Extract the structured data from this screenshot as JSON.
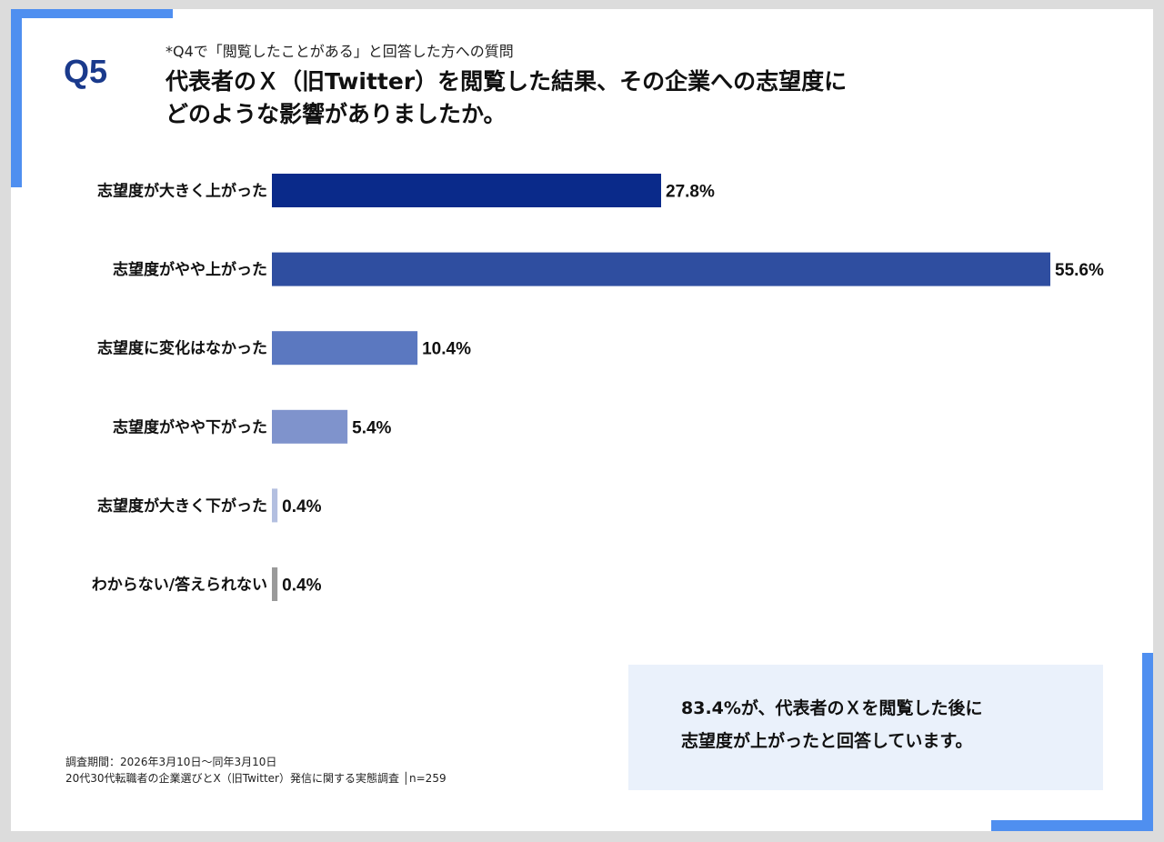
{
  "header": {
    "question_number": "Q5",
    "subnote": "*Q4で「閲覧したことがある」と回答した方への質問",
    "title_line1": "代表者のＸ（旧Twitter）を閲覧した結果、その企業への志望度に",
    "title_line2": "どのような影響がありましたか。"
  },
  "chart_data": {
    "type": "bar",
    "orientation": "horizontal",
    "categories": [
      "志望度が大きく上がった",
      "志望度がやや上がった",
      "志望度に変化はなかった",
      "志望度がやや下がった",
      "志望度が大きく下がった",
      "わからない/答えられない"
    ],
    "values": [
      27.8,
      55.6,
      10.4,
      5.4,
      0.4,
      0.4
    ],
    "value_labels": [
      "27.8%",
      "55.6%",
      "10.4%",
      "5.4%",
      "0.4%",
      "0.4%"
    ],
    "colors": [
      "#0a2a8a",
      "#2f4ea0",
      "#5b78c0",
      "#7f93cc",
      "#b3bfe0",
      "#9a9a9a"
    ],
    "xlim": [
      0,
      55.6
    ],
    "grid": false,
    "legend": "none"
  },
  "callout": {
    "line1": "83.4%が、代表者のＸを閲覧した後に",
    "line2": "志望度が上がったと回答しています。"
  },
  "footer": {
    "line1": "調査期間：2026年3月10日～同年3月10日",
    "line2": "20代30代転職者の企業選びとX（旧Twitter）発信に関する実態調査 │n=259"
  }
}
